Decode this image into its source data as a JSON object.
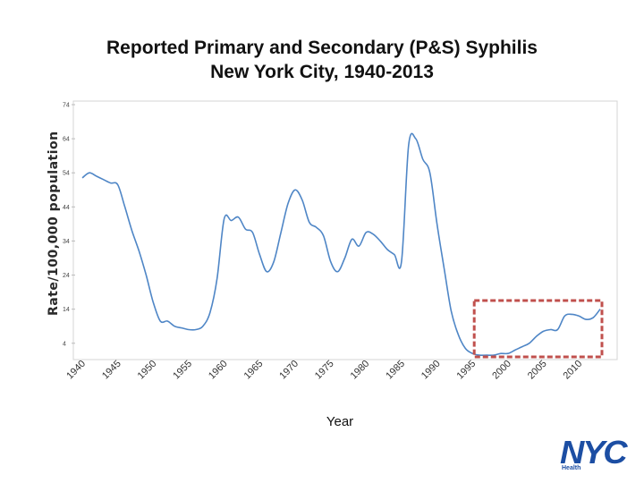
{
  "title": {
    "line1": "Reported Primary and Secondary (P&S) Syphilis",
    "line2": "New York City, 1940-2013"
  },
  "colors": {
    "line": "#4f86c6",
    "highlight": "#c0504d",
    "logo": "#1c4ea3"
  },
  "logo": {
    "text": "NYC",
    "subtext": "Health"
  },
  "chart_data": {
    "type": "line",
    "title": "Reported Primary and Secondary (P&S) Syphilis New York City, 1940-2013",
    "xlabel": "Year",
    "ylabel": "Rate/100,000 population",
    "xlim": [
      1940,
      2013
    ],
    "ylim": [
      0,
      74
    ],
    "yticks": [
      4,
      14,
      24,
      34,
      44,
      54,
      64,
      74
    ],
    "xticks": [
      "1940",
      "1945",
      "1950",
      "1955",
      "1960",
      "1965",
      "1970",
      "1975",
      "1980",
      "1985",
      "1990",
      "1995",
      "2000",
      "2005",
      "2010"
    ],
    "grid": false,
    "highlight": {
      "x_from": 1995.5,
      "x_to": 2013,
      "y_from": 0,
      "y_to": 16,
      "style": "dashed box"
    },
    "series": [
      {
        "name": "P&S Syphilis rate",
        "x": [
          1940,
          1941,
          1942,
          1943,
          1944,
          1945,
          1946,
          1947,
          1948,
          1949,
          1950,
          1951,
          1952,
          1953,
          1954,
          1955,
          1956,
          1957,
          1958,
          1959,
          1960,
          1961,
          1962,
          1963,
          1964,
          1965,
          1966,
          1967,
          1968,
          1969,
          1970,
          1971,
          1972,
          1973,
          1974,
          1975,
          1976,
          1977,
          1978,
          1979,
          1980,
          1981,
          1982,
          1983,
          1984,
          1985,
          1986,
          1987,
          1988,
          1989,
          1990,
          1991,
          1992,
          1993,
          1994,
          1995,
          1996,
          1997,
          1998,
          1999,
          2000,
          2001,
          2002,
          2003,
          2004,
          2005,
          2006,
          2007,
          2008,
          2009,
          2010,
          2011,
          2012,
          2013
        ],
        "values": [
          52.5,
          54,
          53,
          52,
          51,
          50.5,
          44,
          37,
          31,
          24,
          16,
          10.5,
          10.5,
          9,
          8.5,
          8,
          8,
          9,
          13,
          23,
          40.5,
          40,
          41,
          37.5,
          36.5,
          30,
          25,
          28,
          36.5,
          45,
          49,
          46,
          39.5,
          38,
          35.5,
          28,
          25,
          29,
          34.5,
          32.5,
          36.5,
          36,
          34,
          31.5,
          30,
          28,
          62,
          64,
          58,
          54,
          39,
          26,
          13.5,
          6.5,
          2.5,
          1,
          0.5,
          0.5,
          0.5,
          1,
          1,
          2,
          3,
          4,
          6,
          7.5,
          8,
          8,
          12,
          12.5,
          12,
          11,
          11.5,
          14
        ]
      }
    ]
  }
}
